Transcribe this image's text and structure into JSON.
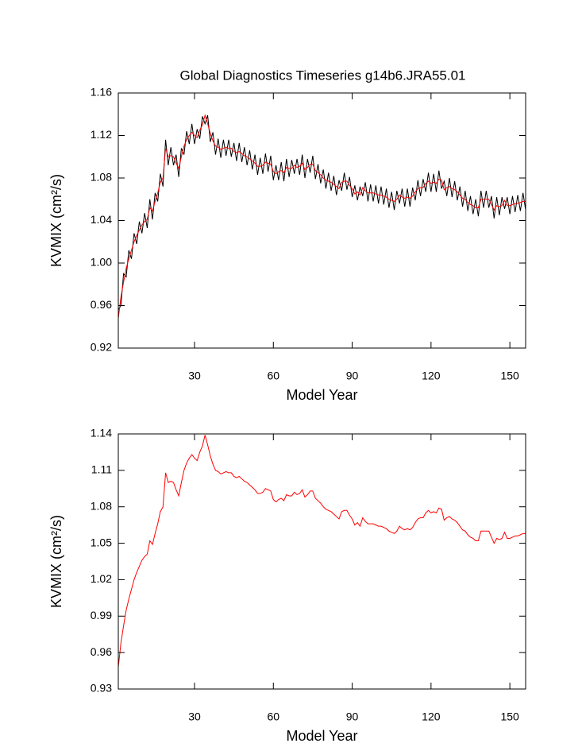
{
  "chart_data": [
    {
      "type": "line",
      "title": "Global Diagnostics Timeseries g14b6.JRA55.01",
      "xlabel": "Model Year",
      "ylabel": "KVMIX (cm²/s)",
      "x": [
        1,
        2,
        3,
        4,
        5,
        6,
        7,
        8,
        9,
        10,
        11,
        12,
        13,
        14,
        15,
        16,
        17,
        18,
        19,
        20,
        21,
        22,
        23,
        24,
        25,
        26,
        27,
        28,
        29,
        30,
        31,
        32,
        33,
        34,
        35,
        36,
        37,
        38,
        39,
        40,
        41,
        42,
        43,
        44,
        45,
        46,
        47,
        48,
        49,
        50,
        51,
        52,
        53,
        54,
        55,
        56,
        57,
        58,
        59,
        60,
        61,
        62,
        63,
        64,
        65,
        66,
        67,
        68,
        69,
        70,
        71,
        72,
        73,
        74,
        75,
        76,
        77,
        78,
        79,
        80,
        81,
        82,
        83,
        84,
        85,
        86,
        87,
        88,
        89,
        90,
        91,
        92,
        93,
        94,
        95,
        96,
        97,
        98,
        99,
        100,
        101,
        102,
        103,
        104,
        105,
        106,
        107,
        108,
        109,
        110,
        111,
        112,
        113,
        114,
        115,
        116,
        117,
        118,
        119,
        120,
        121,
        122,
        123,
        124,
        125,
        126,
        127,
        128,
        129,
        130,
        131,
        132,
        133,
        134,
        135,
        136,
        137,
        138,
        139,
        140,
        141,
        142,
        143,
        144,
        145,
        146,
        147,
        148,
        149,
        150,
        151,
        152,
        153,
        154,
        155,
        156
      ],
      "series": [
        {
          "color": "#000000",
          "values": [
            0.956,
            0.96,
            0.99,
            0.987,
            1.012,
            1.004,
            1.028,
            1.018,
            1.039,
            1.028,
            1.047,
            1.033,
            1.06,
            1.041,
            1.066,
            1.058,
            1.084,
            1.072,
            1.116,
            1.092,
            1.109,
            1.092,
            1.102,
            1.081,
            1.108,
            1.102,
            1.124,
            1.112,
            1.131,
            1.112,
            1.126,
            1.117,
            1.138,
            1.131,
            1.139,
            1.114,
            1.123,
            1.102,
            1.117,
            1.099,
            1.116,
            1.101,
            1.116,
            1.1,
            1.113,
            1.096,
            1.113,
            1.095,
            1.109,
            1.092,
            1.106,
            1.088,
            1.102,
            1.083,
            1.099,
            1.084,
            1.103,
            1.086,
            1.101,
            1.078,
            1.092,
            1.078,
            1.095,
            1.077,
            1.098,
            1.081,
            1.097,
            1.084,
            1.098,
            1.083,
            1.102,
            1.08,
            1.098,
            1.085,
            1.101,
            1.079,
            1.093,
            1.075,
            1.088,
            1.07,
            1.085,
            1.068,
            1.082,
            1.064,
            1.078,
            1.068,
            1.085,
            1.069,
            1.081,
            1.062,
            1.073,
            1.059,
            1.072,
            1.063,
            1.076,
            1.058,
            1.074,
            1.058,
            1.073,
            1.056,
            1.072,
            1.055,
            1.07,
            1.052,
            1.067,
            1.05,
            1.068,
            1.056,
            1.07,
            1.053,
            1.07,
            1.053,
            1.071,
            1.059,
            1.078,
            1.063,
            1.079,
            1.067,
            1.085,
            1.067,
            1.084,
            1.067,
            1.087,
            1.07,
            1.077,
            1.063,
            1.08,
            1.062,
            1.077,
            1.059,
            1.072,
            1.053,
            1.068,
            1.049,
            1.063,
            1.046,
            1.06,
            1.044,
            1.068,
            1.052,
            1.068,
            1.052,
            1.063,
            1.042,
            1.062,
            1.045,
            1.062,
            1.051,
            1.062,
            1.046,
            1.063,
            1.048,
            1.064,
            1.049,
            1.066,
            1.05
          ]
        },
        {
          "color": "#ff0000",
          "values": [
            0.948,
            0.968,
            0.982,
            0.995,
            1.004,
            1.012,
            1.02,
            1.026,
            1.031,
            1.036,
            1.039,
            1.041,
            1.052,
            1.049,
            1.058,
            1.066,
            1.076,
            1.08,
            1.108,
            1.1,
            1.101,
            1.1,
            1.094,
            1.089,
            1.1,
            1.11,
            1.116,
            1.12,
            1.123,
            1.12,
            1.118,
            1.125,
            1.13,
            1.139,
            1.131,
            1.122,
            1.115,
            1.11,
            1.109,
            1.107,
            1.108,
            1.109,
            1.108,
            1.108,
            1.105,
            1.104,
            1.105,
            1.103,
            1.101,
            1.1,
            1.098,
            1.096,
            1.094,
            1.091,
            1.091,
            1.092,
            1.095,
            1.094,
            1.093,
            1.086,
            1.084,
            1.086,
            1.087,
            1.085,
            1.09,
            1.089,
            1.089,
            1.092,
            1.09,
            1.091,
            1.094,
            1.088,
            1.09,
            1.093,
            1.093,
            1.087,
            1.085,
            1.083,
            1.08,
            1.078,
            1.077,
            1.076,
            1.074,
            1.072,
            1.07,
            1.076,
            1.077,
            1.077,
            1.073,
            1.07,
            1.065,
            1.067,
            1.064,
            1.071,
            1.068,
            1.066,
            1.066,
            1.066,
            1.065,
            1.064,
            1.064,
            1.063,
            1.062,
            1.06,
            1.059,
            1.058,
            1.06,
            1.064,
            1.062,
            1.061,
            1.062,
            1.061,
            1.063,
            1.067,
            1.07,
            1.071,
            1.071,
            1.075,
            1.077,
            1.075,
            1.076,
            1.075,
            1.079,
            1.078,
            1.069,
            1.071,
            1.072,
            1.07,
            1.069,
            1.067,
            1.064,
            1.061,
            1.06,
            1.057,
            1.055,
            1.054,
            1.052,
            1.052,
            1.06,
            1.06,
            1.06,
            1.06,
            1.055,
            1.05,
            1.054,
            1.053,
            1.054,
            1.059,
            1.054,
            1.054,
            1.055,
            1.056,
            1.056,
            1.057,
            1.058,
            1.058
          ]
        }
      ],
      "xlim": [
        1,
        156
      ],
      "xticks": [
        30,
        60,
        90,
        120,
        150
      ],
      "ylim": [
        0.92,
        1.16
      ],
      "yticks": [
        0.92,
        0.96,
        {
          "value": 1,
          "label": "1.00"
        },
        1.04,
        1.08,
        1.12,
        1.16
      ]
    },
    {
      "type": "line",
      "xlabel": "Model Year",
      "ylabel": "KVMIX (cm²/s)",
      "x": [
        1,
        2,
        3,
        4,
        5,
        6,
        7,
        8,
        9,
        10,
        11,
        12,
        13,
        14,
        15,
        16,
        17,
        18,
        19,
        20,
        21,
        22,
        23,
        24,
        25,
        26,
        27,
        28,
        29,
        30,
        31,
        32,
        33,
        34,
        35,
        36,
        37,
        38,
        39,
        40,
        41,
        42,
        43,
        44,
        45,
        46,
        47,
        48,
        49,
        50,
        51,
        52,
        53,
        54,
        55,
        56,
        57,
        58,
        59,
        60,
        61,
        62,
        63,
        64,
        65,
        66,
        67,
        68,
        69,
        70,
        71,
        72,
        73,
        74,
        75,
        76,
        77,
        78,
        79,
        80,
        81,
        82,
        83,
        84,
        85,
        86,
        87,
        88,
        89,
        90,
        91,
        92,
        93,
        94,
        95,
        96,
        97,
        98,
        99,
        100,
        101,
        102,
        103,
        104,
        105,
        106,
        107,
        108,
        109,
        110,
        111,
        112,
        113,
        114,
        115,
        116,
        117,
        118,
        119,
        120,
        121,
        122,
        123,
        124,
        125,
        126,
        127,
        128,
        129,
        130,
        131,
        132,
        133,
        134,
        135,
        136,
        137,
        138,
        139,
        140,
        141,
        142,
        143,
        144,
        145,
        146,
        147,
        148,
        149,
        150,
        151,
        152,
        153,
        154,
        155,
        156
      ],
      "series": [
        {
          "color": "#ff0000",
          "values": [
            0.948,
            0.968,
            0.982,
            0.995,
            1.004,
            1.012,
            1.02,
            1.026,
            1.031,
            1.036,
            1.039,
            1.041,
            1.052,
            1.049,
            1.058,
            1.066,
            1.076,
            1.08,
            1.108,
            1.1,
            1.101,
            1.1,
            1.094,
            1.089,
            1.1,
            1.11,
            1.116,
            1.12,
            1.123,
            1.12,
            1.118,
            1.125,
            1.13,
            1.139,
            1.131,
            1.122,
            1.115,
            1.11,
            1.109,
            1.107,
            1.108,
            1.109,
            1.108,
            1.108,
            1.105,
            1.104,
            1.105,
            1.103,
            1.101,
            1.1,
            1.098,
            1.096,
            1.094,
            1.091,
            1.091,
            1.092,
            1.095,
            1.094,
            1.093,
            1.086,
            1.084,
            1.086,
            1.087,
            1.085,
            1.09,
            1.089,
            1.089,
            1.092,
            1.09,
            1.091,
            1.094,
            1.088,
            1.09,
            1.093,
            1.093,
            1.087,
            1.085,
            1.083,
            1.08,
            1.078,
            1.077,
            1.076,
            1.074,
            1.072,
            1.07,
            1.076,
            1.077,
            1.077,
            1.073,
            1.07,
            1.065,
            1.067,
            1.064,
            1.071,
            1.068,
            1.066,
            1.066,
            1.066,
            1.065,
            1.064,
            1.064,
            1.063,
            1.062,
            1.06,
            1.059,
            1.058,
            1.06,
            1.064,
            1.062,
            1.061,
            1.062,
            1.061,
            1.063,
            1.067,
            1.07,
            1.071,
            1.071,
            1.075,
            1.077,
            1.075,
            1.076,
            1.075,
            1.079,
            1.078,
            1.069,
            1.071,
            1.072,
            1.07,
            1.069,
            1.067,
            1.064,
            1.061,
            1.06,
            1.057,
            1.055,
            1.054,
            1.052,
            1.052,
            1.06,
            1.06,
            1.06,
            1.06,
            1.055,
            1.05,
            1.054,
            1.053,
            1.054,
            1.059,
            1.054,
            1.054,
            1.055,
            1.056,
            1.056,
            1.057,
            1.058,
            1.058
          ]
        }
      ],
      "xlim": [
        1,
        156
      ],
      "xticks": [
        30,
        60,
        90,
        120,
        150
      ],
      "ylim": [
        0.93,
        1.14
      ],
      "yticks": [
        0.93,
        0.96,
        0.99,
        1.02,
        1.05,
        1.08,
        1.11,
        1.14
      ]
    }
  ]
}
